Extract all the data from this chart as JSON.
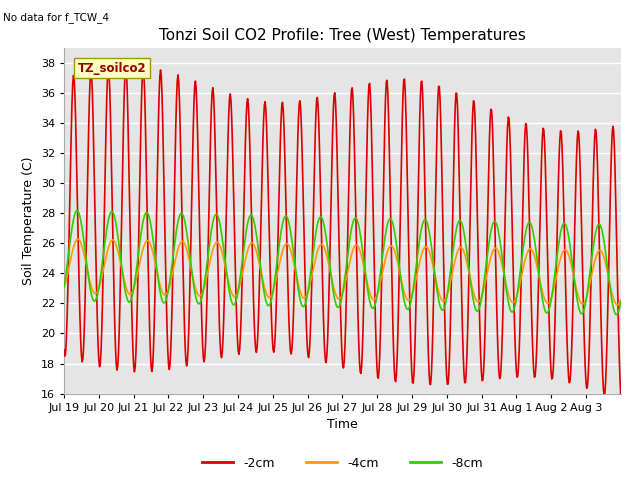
{
  "title": "Tonzi Soil CO2 Profile: Tree (West) Temperatures",
  "no_data_label": "No data for f_TCW_4",
  "box_label": "TZ_soilco2",
  "ylabel": "Soil Temperature (C)",
  "xlabel": "Time",
  "ylim": [
    16,
    39
  ],
  "yticks": [
    16,
    18,
    20,
    22,
    24,
    26,
    28,
    30,
    32,
    34,
    36,
    38
  ],
  "bg_color": "#e5e5e5",
  "series": [
    {
      "label": "-2cm",
      "color": "#dd0000",
      "lw": 1.2
    },
    {
      "label": "-4cm",
      "color": "#ff9900",
      "lw": 1.2
    },
    {
      "label": "-8cm",
      "color": "#33cc00",
      "lw": 1.2
    }
  ],
  "xtick_labels": [
    "Jul 19",
    "Jul 20",
    "Jul 21",
    "Jul 22",
    "Jul 23",
    "Jul 24",
    "Jul 25",
    "Jul 26",
    "Jul 27",
    "Jul 28",
    "Jul 29",
    "Jul 30",
    "Jul 31",
    "Aug 1",
    "Aug 2",
    "Aug 3"
  ],
  "num_days": 16,
  "pts_per_day": 48,
  "title_fontsize": 11,
  "tick_fontsize": 8,
  "label_fontsize": 9
}
